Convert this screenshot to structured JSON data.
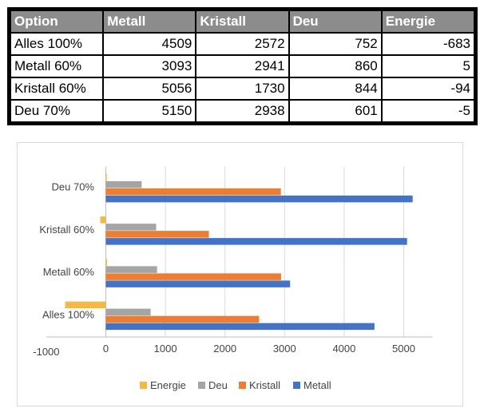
{
  "table": {
    "headers": [
      "Option",
      "Metall",
      "Kristall",
      "Deu",
      "Energie"
    ],
    "rows": [
      [
        "Alles 100%",
        "4509",
        "2572",
        "752",
        "-683"
      ],
      [
        "Metall 60%",
        "3093",
        "2941",
        "860",
        "5"
      ],
      [
        "Kristall 60%",
        "5056",
        "1730",
        "844",
        "-94"
      ],
      [
        "Deu 70%",
        "5150",
        "2938",
        "601",
        "-5"
      ]
    ]
  },
  "chart_data": {
    "type": "bar",
    "orientation": "horizontal",
    "categories": [
      "Alles 100%",
      "Metall 60%",
      "Kristall 60%",
      "Deu 70%"
    ],
    "series": [
      {
        "name": "Energie",
        "values": [
          -683,
          5,
          -94,
          -5
        ],
        "color": "#f4b942"
      },
      {
        "name": "Deu",
        "values": [
          752,
          860,
          844,
          601
        ],
        "color": "#a5a5a5"
      },
      {
        "name": "Kristall",
        "values": [
          2572,
          2941,
          1730,
          2938
        ],
        "color": "#ed7d31"
      },
      {
        "name": "Metall",
        "values": [
          4509,
          3093,
          5056,
          5150
        ],
        "color": "#4472c4"
      }
    ],
    "xlim": [
      -1000,
      5000
    ],
    "x_ticks": [
      "-1000",
      "0",
      "1000",
      "2000",
      "3000",
      "4000",
      "5000"
    ],
    "grid": true,
    "legend_position": "bottom",
    "title": "",
    "xlabel": "",
    "ylabel": ""
  }
}
